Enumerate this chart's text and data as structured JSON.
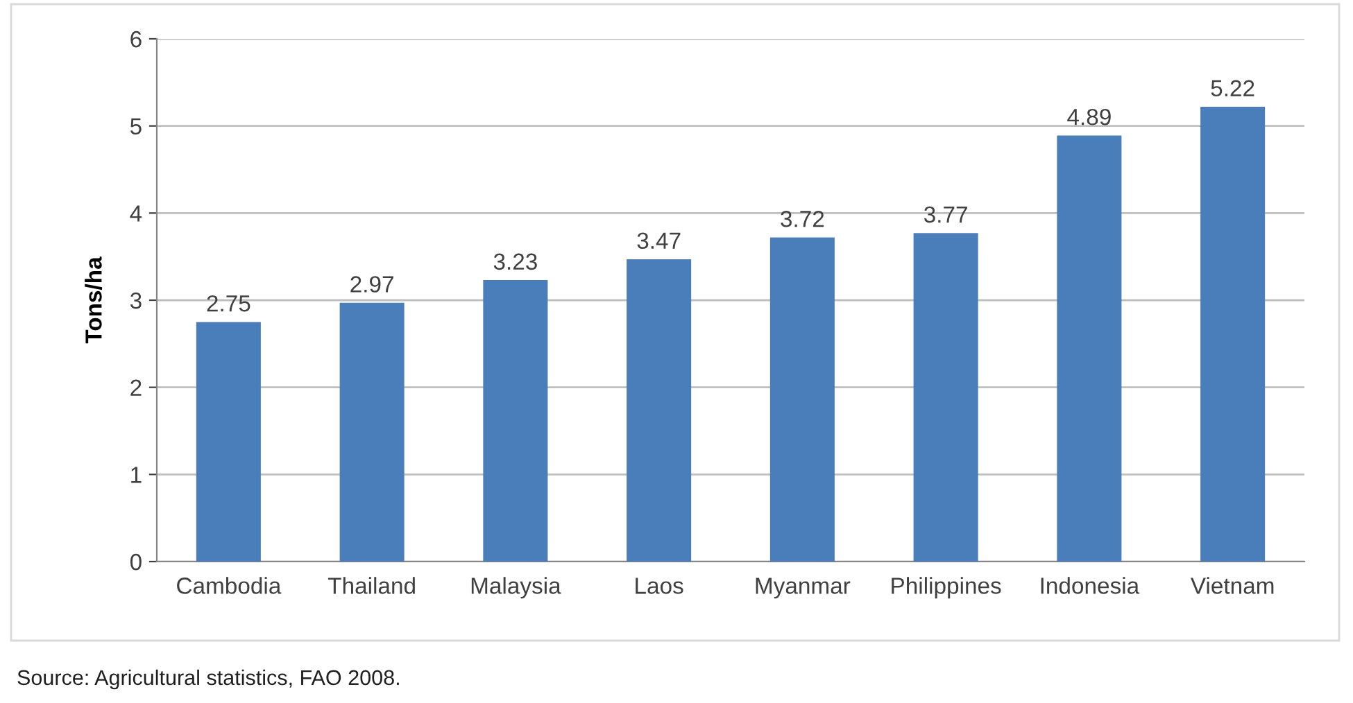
{
  "chart_data": {
    "type": "bar",
    "ylabel": "Tons/ha",
    "categories": [
      "Cambodia",
      "Thailand",
      "Malaysia",
      "Laos",
      "Myanmar",
      "Philippines",
      "Indonesia",
      "Vietnam"
    ],
    "values": [
      2.75,
      2.97,
      3.23,
      3.47,
      3.72,
      3.77,
      4.89,
      5.22
    ],
    "color": "#4a7ebb",
    "ylim": [
      0,
      6
    ],
    "yticks": [
      0,
      1,
      2,
      3,
      4,
      5,
      6
    ],
    "grid": "y",
    "data_labels": true,
    "legend": false,
    "annotations": [
      "Source: Agricultural statistics, FAO 2008."
    ]
  }
}
